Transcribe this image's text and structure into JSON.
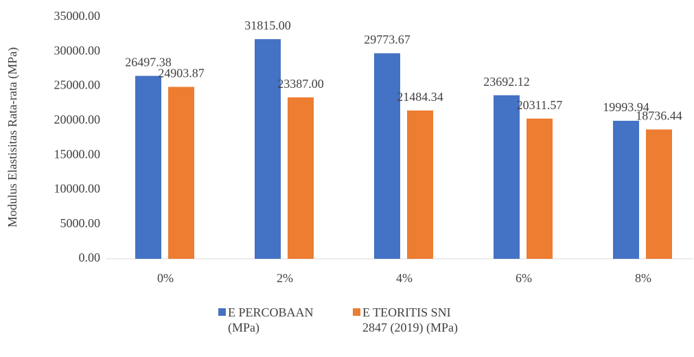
{
  "chart_data": {
    "type": "bar",
    "y_label": "Modulus Elastisitas Rata-rata (MPa)",
    "categories": [
      "0%",
      "2%",
      "4%",
      "6%",
      "8%"
    ],
    "series": [
      {
        "name": "E PERCOBAAN (MPa)",
        "color": "#4472c4",
        "values": [
          26497.38,
          31815,
          29773.67,
          23692.12,
          19993.94
        ],
        "value_labels": [
          "26497.38",
          "31815.00",
          "29773.67",
          "23692.12",
          "19993.94"
        ]
      },
      {
        "name": "E TEORITIS SNI 2847 (2019) (MPa)",
        "color": "#ed7d31",
        "values": [
          24903.87,
          23387,
          21484.34,
          20311.57,
          18736.44
        ],
        "value_labels": [
          "24903.87",
          "23387.00",
          "21484.34",
          "20311.57",
          "18736.44"
        ]
      }
    ],
    "ylim": [
      0,
      35000
    ],
    "yticks": [
      {
        "value": 0,
        "label": "0.00"
      },
      {
        "value": 5000,
        "label": "5000.00"
      },
      {
        "value": 10000,
        "label": "10000.00"
      },
      {
        "value": 15000,
        "label": "15000.00"
      },
      {
        "value": 20000,
        "label": "20000.00"
      },
      {
        "value": 25000,
        "label": "25000.00"
      },
      {
        "value": 30000,
        "label": "30000.00"
      },
      {
        "value": 35000,
        "label": "35000.00"
      }
    ],
    "grid": false,
    "legend": "bottom"
  }
}
